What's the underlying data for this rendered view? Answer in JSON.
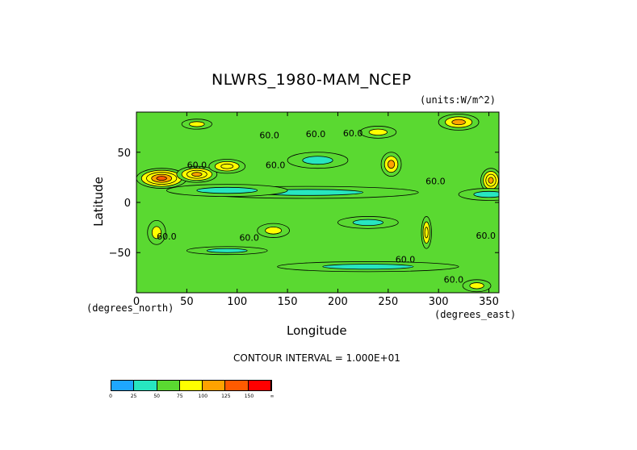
{
  "chart_data": {
    "type": "heatmap",
    "title": "NLWRS_1980-MAM_NCEP",
    "units_label": "(units:W/m^2)",
    "xlabel": "Longitude",
    "ylabel": "Latitude",
    "x_unit_label": "(degrees_east)",
    "y_unit_label": "(degrees_north)",
    "xlim": [
      0,
      360
    ],
    "ylim": [
      -90,
      90
    ],
    "x_ticks": [
      {
        "value": 0,
        "label": "0"
      },
      {
        "value": 50,
        "label": "50"
      },
      {
        "value": 100,
        "label": "100"
      },
      {
        "value": 150,
        "label": "150"
      },
      {
        "value": 200,
        "label": "200"
      },
      {
        "value": 250,
        "label": "250"
      },
      {
        "value": 300,
        "label": "300"
      },
      {
        "value": 350,
        "label": "350"
      }
    ],
    "y_ticks": [
      {
        "value": 50,
        "label": "50"
      },
      {
        "value": 0,
        "label": "0"
      },
      {
        "value": -50,
        "label": "−50"
      }
    ],
    "contour_interval_label": "CONTOUR INTERVAL = 1.000E+01",
    "contour_labels": [
      {
        "lon": 132,
        "lat": 64,
        "text": "60.0"
      },
      {
        "lon": 178,
        "lat": 65,
        "text": "60.0"
      },
      {
        "lon": 215,
        "lat": 66,
        "text": "60.0"
      },
      {
        "lon": 138,
        "lat": 34,
        "text": "60.0"
      },
      {
        "lon": 60,
        "lat": 34,
        "text": "60.0"
      },
      {
        "lon": 297,
        "lat": 18,
        "text": "60.0"
      },
      {
        "lon": 30,
        "lat": -37,
        "text": "60.0"
      },
      {
        "lon": 112,
        "lat": -38,
        "text": "60.0"
      },
      {
        "lon": 267,
        "lat": -60,
        "text": "60.0"
      },
      {
        "lon": 347,
        "lat": -36,
        "text": "60.0"
      },
      {
        "lon": 315,
        "lat": -80,
        "text": "60.0"
      }
    ],
    "background_level": 60,
    "features": [
      {
        "lon": 25,
        "lat": 24,
        "rlon": 25,
        "rlat": 10,
        "value": 130
      },
      {
        "lon": 60,
        "lat": 28,
        "rlon": 20,
        "rlat": 8,
        "value": 110
      },
      {
        "lon": 90,
        "lat": 36,
        "rlon": 18,
        "rlat": 7,
        "value": 95
      },
      {
        "lon": 20,
        "lat": -30,
        "rlon": 9,
        "rlat": 12,
        "value": 80
      },
      {
        "lon": 136,
        "lat": -28,
        "rlon": 16,
        "rlat": 7,
        "value": 85
      },
      {
        "lon": 253,
        "lat": 38,
        "rlon": 10,
        "rlat": 12,
        "value": 100
      },
      {
        "lon": 288,
        "lat": -30,
        "rlon": 5,
        "rlat": 16,
        "value": 95
      },
      {
        "lon": 352,
        "lat": 22,
        "rlon": 10,
        "rlat": 12,
        "value": 115
      },
      {
        "lon": 320,
        "lat": 80,
        "rlon": 20,
        "rlat": 8,
        "value": 100
      },
      {
        "lon": 338,
        "lat": -83,
        "rlon": 14,
        "rlat": 6,
        "value": 80
      },
      {
        "lon": 60,
        "lat": 78,
        "rlon": 15,
        "rlat": 5,
        "value": 75
      },
      {
        "lon": 240,
        "lat": 70,
        "rlon": 18,
        "rlat": 6,
        "value": 75
      },
      {
        "lon": 180,
        "lat": 42,
        "rlon": 30,
        "rlat": 8,
        "value": 45
      },
      {
        "lon": 170,
        "lat": 10,
        "rlon": 110,
        "rlat": 6,
        "value": 45
      },
      {
        "lon": 90,
        "lat": 12,
        "rlon": 60,
        "rlat": 6,
        "value": 45
      },
      {
        "lon": 230,
        "lat": -20,
        "rlon": 30,
        "rlat": 6,
        "value": 45
      },
      {
        "lon": 90,
        "lat": -48,
        "rlon": 40,
        "rlat": 4,
        "value": 45
      },
      {
        "lon": 230,
        "lat": -64,
        "rlon": 90,
        "rlat": 5,
        "value": 45
      },
      {
        "lon": 350,
        "lat": 8,
        "rlon": 30,
        "rlat": 6,
        "value": 45
      }
    ],
    "colorbar": {
      "colors": [
        "#1ea7ff",
        "#27e6c0",
        "#5ad931",
        "#ffff00",
        "#ffa200",
        "#ff5a00",
        "#ff0000"
      ],
      "tick_labels": [
        "0",
        "25",
        "50",
        "75",
        "100",
        "125",
        "150",
        "∞"
      ]
    }
  }
}
